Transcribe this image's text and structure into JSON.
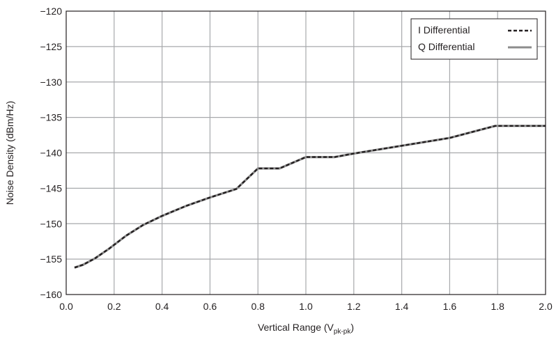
{
  "chart_data": {
    "type": "line",
    "xlabel_main": "Vertical Range (V",
    "xlabel_sub": "pk-pk",
    "xlabel_end": ")",
    "ylabel": "Noise Density (dBm/Hz)",
    "xlim": [
      0.0,
      2.0
    ],
    "ylim": [
      -160,
      -120
    ],
    "xticks": [
      0.0,
      0.2,
      0.4,
      0.6,
      0.8,
      1.0,
      1.2,
      1.4,
      1.6,
      1.8,
      2.0
    ],
    "xtick_labels": [
      "0.0",
      "0.2",
      "0.4",
      "0.6",
      "0.8",
      "1.0",
      "1.2",
      "1.4",
      "1.6",
      "1.8",
      "2.0"
    ],
    "yticks": [
      -160,
      -155,
      -150,
      -145,
      -140,
      -135,
      -130,
      -125,
      -120
    ],
    "ytick_labels": [
      "−160",
      "−155",
      "−150",
      "−145",
      "−140",
      "−135",
      "−130",
      "−125",
      "−120"
    ],
    "grid": true,
    "legend_position": "top-right",
    "series": [
      {
        "name": "I Differential",
        "style": "dashed",
        "color": "#231f20",
        "x": [
          0.035,
          0.07,
          0.12,
          0.18,
          0.25,
          0.32,
          0.4,
          0.5,
          0.6,
          0.71,
          0.8,
          0.89,
          1.0,
          1.12,
          1.2,
          1.4,
          1.6,
          1.79,
          2.0
        ],
        "y": [
          -156.2,
          -155.8,
          -154.9,
          -153.5,
          -151.7,
          -150.2,
          -148.9,
          -147.5,
          -146.3,
          -145.1,
          -142.2,
          -142.2,
          -140.6,
          -140.6,
          -140.1,
          -139.0,
          -137.9,
          -136.2,
          -136.2
        ]
      },
      {
        "name": "Q Differential",
        "style": "solid",
        "color": "#8c8c8c",
        "x": [
          0.035,
          0.07,
          0.12,
          0.18,
          0.25,
          0.32,
          0.4,
          0.5,
          0.6,
          0.71,
          0.8,
          0.89,
          1.0,
          1.12,
          1.2,
          1.4,
          1.6,
          1.79,
          2.0
        ],
        "y": [
          -156.2,
          -155.8,
          -154.9,
          -153.5,
          -151.7,
          -150.2,
          -148.9,
          -147.5,
          -146.3,
          -145.1,
          -142.2,
          -142.2,
          -140.6,
          -140.6,
          -140.1,
          -139.0,
          -137.9,
          -136.2,
          -136.2
        ]
      }
    ]
  }
}
